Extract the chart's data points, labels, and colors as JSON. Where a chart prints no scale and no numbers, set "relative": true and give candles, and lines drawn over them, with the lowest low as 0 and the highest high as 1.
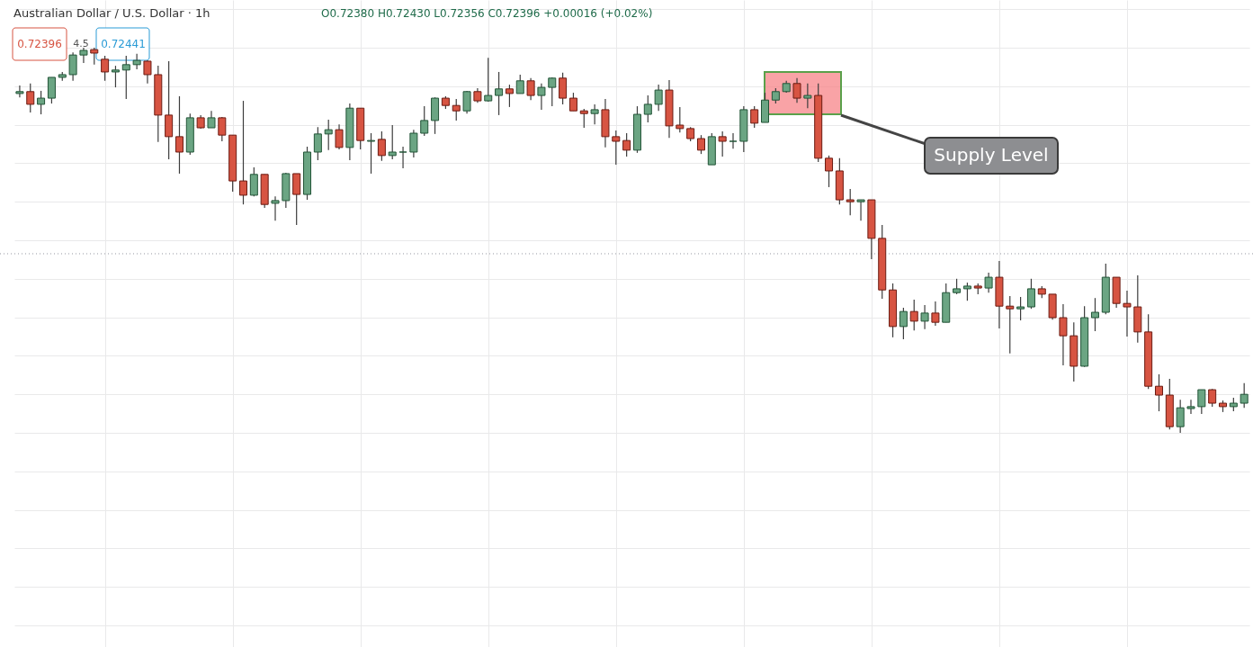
{
  "chart_data": {
    "type": "candlestick",
    "title": "Australian Dollar / U.S. Dollar · 1h",
    "relative": true,
    "grid": true,
    "annotations": [
      "O0.72380 H0.72430 L0.72356 C0.72396 +0.00016 (+0.02%)",
      "0.72396",
      "4.5",
      "0.72441"
    ],
    "categories": [
      null,
      null,
      null,
      null,
      null,
      null,
      null,
      null,
      null,
      null,
      null,
      null,
      null,
      null,
      null,
      null,
      null,
      null,
      null,
      null,
      null,
      null,
      null,
      null,
      null,
      null,
      null,
      null,
      null,
      null,
      null,
      null,
      null,
      null,
      null,
      null,
      null,
      null,
      null,
      null,
      null,
      null,
      null,
      null,
      null,
      null,
      null,
      null,
      null,
      null,
      null,
      null,
      null,
      null,
      null,
      null,
      null,
      null,
      null,
      null,
      null,
      null,
      null,
      null,
      null,
      null,
      null,
      null,
      null,
      null,
      null,
      null,
      null,
      null,
      null,
      null,
      null,
      null,
      null,
      null,
      null,
      null,
      null,
      null,
      null,
      null,
      null,
      null,
      null,
      null,
      null,
      null,
      null,
      null,
      null,
      null,
      null,
      null,
      null,
      null,
      null,
      null,
      null,
      null,
      null,
      null,
      null,
      null,
      null,
      null,
      null,
      null,
      null,
      null,
      null,
      null
    ],
    "ohlc": [
      [
        0.881,
        0.902,
        0.871,
        0.886
      ],
      [
        0.886,
        0.907,
        0.832,
        0.853
      ],
      [
        0.853,
        0.888,
        0.827,
        0.869
      ],
      [
        0.869,
        0.923,
        0.855,
        0.923
      ],
      [
        0.923,
        0.937,
        0.914,
        0.93
      ],
      [
        0.93,
        0.988,
        0.914,
        0.981
      ],
      [
        0.981,
        1.0,
        0.96,
        0.993
      ],
      [
        0.995,
        1.0,
        0.956,
        0.986
      ],
      [
        0.97,
        0.979,
        0.914,
        0.937
      ],
      [
        0.937,
        0.953,
        0.897,
        0.942
      ],
      [
        0.942,
        0.979,
        0.867,
        0.956
      ],
      [
        0.956,
        0.984,
        0.944,
        0.967
      ],
      [
        0.965,
        0.967,
        0.907,
        0.93
      ],
      [
        0.93,
        0.953,
        0.755,
        0.825
      ],
      [
        0.825,
        0.965,
        0.71,
        0.769
      ],
      [
        0.769,
        0.874,
        0.673,
        0.729
      ],
      [
        0.729,
        0.829,
        0.722,
        0.818
      ],
      [
        0.818,
        0.825,
        0.79,
        0.792
      ],
      [
        0.792,
        0.836,
        0.792,
        0.818
      ],
      [
        0.818,
        0.82,
        0.757,
        0.773
      ],
      [
        0.773,
        0.773,
        0.626,
        0.654
      ],
      [
        0.654,
        0.862,
        0.593,
        0.617
      ],
      [
        0.617,
        0.689,
        0.614,
        0.671
      ],
      [
        0.671,
        0.671,
        0.584,
        0.593
      ],
      [
        0.596,
        0.614,
        0.551,
        0.603
      ],
      [
        0.603,
        0.675,
        0.584,
        0.673
      ],
      [
        0.673,
        0.673,
        0.54,
        0.619
      ],
      [
        0.619,
        0.743,
        0.605,
        0.729
      ],
      [
        0.729,
        0.794,
        0.708,
        0.776
      ],
      [
        0.776,
        0.813,
        0.734,
        0.787
      ],
      [
        0.787,
        0.801,
        0.736,
        0.741
      ],
      [
        0.741,
        0.855,
        0.708,
        0.843
      ],
      [
        0.843,
        0.843,
        0.736,
        0.759
      ],
      [
        0.757,
        0.778,
        0.673,
        0.759
      ],
      [
        0.762,
        0.783,
        0.706,
        0.72
      ],
      [
        0.72,
        0.799,
        0.71,
        0.729
      ],
      [
        0.729,
        0.743,
        0.687,
        0.729
      ],
      [
        0.729,
        0.787,
        0.715,
        0.778
      ],
      [
        0.778,
        0.848,
        0.771,
        0.811
      ],
      [
        0.811,
        0.871,
        0.776,
        0.869
      ],
      [
        0.869,
        0.874,
        0.841,
        0.85
      ],
      [
        0.85,
        0.867,
        0.811,
        0.836
      ],
      [
        0.836,
        0.888,
        0.829,
        0.886
      ],
      [
        0.886,
        0.895,
        0.857,
        0.862
      ],
      [
        0.862,
        0.974,
        0.86,
        0.876
      ],
      [
        0.876,
        0.937,
        0.825,
        0.893
      ],
      [
        0.893,
        0.904,
        0.846,
        0.881
      ],
      [
        0.881,
        0.93,
        0.881,
        0.914
      ],
      [
        0.914,
        0.921,
        0.864,
        0.876
      ],
      [
        0.876,
        0.907,
        0.839,
        0.897
      ],
      [
        0.897,
        0.923,
        0.848,
        0.921
      ],
      [
        0.921,
        0.935,
        0.853,
        0.869
      ],
      [
        0.869,
        0.883,
        0.836,
        0.836
      ],
      [
        0.836,
        0.841,
        0.792,
        0.829
      ],
      [
        0.829,
        0.853,
        0.801,
        0.839
      ],
      [
        0.839,
        0.867,
        0.741,
        0.769
      ],
      [
        0.769,
        0.785,
        0.696,
        0.757
      ],
      [
        0.759,
        0.778,
        0.717,
        0.734
      ],
      [
        0.734,
        0.848,
        0.727,
        0.827
      ],
      [
        0.827,
        0.876,
        0.806,
        0.853
      ],
      [
        0.853,
        0.904,
        0.836,
        0.89
      ],
      [
        0.89,
        0.916,
        0.766,
        0.797
      ],
      [
        0.799,
        0.846,
        0.78,
        0.79
      ],
      [
        0.79,
        0.794,
        0.757,
        0.764
      ],
      [
        0.764,
        0.773,
        0.724,
        0.734
      ],
      [
        0.696,
        0.778,
        0.696,
        0.769
      ],
      [
        0.769,
        0.783,
        0.717,
        0.757
      ],
      [
        0.757,
        0.778,
        0.738,
        0.757
      ],
      [
        0.757,
        0.848,
        0.729,
        0.839
      ],
      [
        0.839,
        0.848,
        0.792,
        0.804
      ],
      [
        0.806,
        0.883,
        0.806,
        0.864
      ],
      [
        0.864,
        0.895,
        0.855,
        0.886
      ],
      [
        0.886,
        0.914,
        0.883,
        0.907
      ],
      [
        0.907,
        0.921,
        0.857,
        0.869
      ],
      [
        0.869,
        0.907,
        0.843,
        0.876
      ],
      [
        0.876,
        0.907,
        0.703,
        0.713
      ],
      [
        0.713,
        0.72,
        0.638,
        0.68
      ],
      [
        0.68,
        0.713,
        0.593,
        0.605
      ],
      [
        0.605,
        0.633,
        0.565,
        0.6
      ],
      [
        0.6,
        0.605,
        0.551,
        0.605
      ],
      [
        0.605,
        0.605,
        0.451,
        0.505
      ],
      [
        0.505,
        0.54,
        0.348,
        0.371
      ],
      [
        0.371,
        0.388,
        0.248,
        0.276
      ],
      [
        0.276,
        0.325,
        0.243,
        0.315
      ],
      [
        0.315,
        0.346,
        0.266,
        0.29
      ],
      [
        0.29,
        0.332,
        0.269,
        0.311
      ],
      [
        0.311,
        0.341,
        0.278,
        0.287
      ],
      [
        0.287,
        0.388,
        0.287,
        0.364
      ],
      [
        0.364,
        0.4,
        0.36,
        0.374
      ],
      [
        0.374,
        0.39,
        0.343,
        0.381
      ],
      [
        0.381,
        0.388,
        0.36,
        0.376
      ],
      [
        0.376,
        0.416,
        0.364,
        0.404
      ],
      [
        0.404,
        0.446,
        0.271,
        0.329
      ],
      [
        0.329,
        0.355,
        0.206,
        0.322
      ],
      [
        0.322,
        0.353,
        0.292,
        0.327
      ],
      [
        0.327,
        0.4,
        0.322,
        0.374
      ],
      [
        0.374,
        0.381,
        0.35,
        0.36
      ],
      [
        0.36,
        0.36,
        0.294,
        0.299
      ],
      [
        0.299,
        0.334,
        0.175,
        0.252
      ],
      [
        0.252,
        0.287,
        0.133,
        0.173
      ],
      [
        0.173,
        0.329,
        0.171,
        0.299
      ],
      [
        0.299,
        0.35,
        0.264,
        0.313
      ],
      [
        0.313,
        0.439,
        0.308,
        0.404
      ],
      [
        0.404,
        0.404,
        0.325,
        0.336
      ],
      [
        0.336,
        0.369,
        0.25,
        0.327
      ],
      [
        0.327,
        0.409,
        0.234,
        0.262
      ],
      [
        0.262,
        0.308,
        0.114,
        0.121
      ],
      [
        0.121,
        0.152,
        0.056,
        0.098
      ],
      [
        0.098,
        0.14,
        0.009,
        0.016
      ],
      [
        0.016,
        0.086,
        0.0,
        0.065
      ],
      [
        0.063,
        0.086,
        0.049,
        0.068
      ],
      [
        0.068,
        0.112,
        0.049,
        0.112
      ],
      [
        0.112,
        0.114,
        0.068,
        0.077
      ],
      [
        0.077,
        0.084,
        0.054,
        0.068
      ],
      [
        0.068,
        0.091,
        0.056,
        0.077
      ],
      [
        0.077,
        0.129,
        0.065,
        0.1
      ]
    ],
    "ref_lines": [
      {
        "axis": "y",
        "value": 0.465,
        "color": "#9598a1",
        "line_style": "dotted"
      }
    ],
    "bands": [
      {
        "axis": "y",
        "from": 0.827,
        "to": 0.937,
        "label": "Supply Level",
        "color": "#f77c80"
      }
    ]
  }
}
